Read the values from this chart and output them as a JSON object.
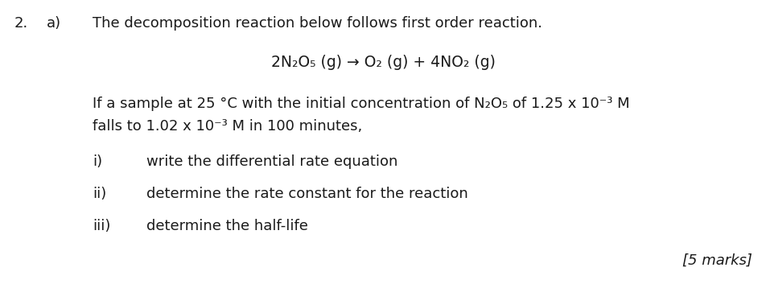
{
  "background_color": "#ffffff",
  "fig_width": 9.52,
  "fig_height": 3.53,
  "dpi": 100,
  "number": "2.",
  "letter": "a)",
  "line1": "The decomposition reaction below follows first order reaction.",
  "equation": "2N₂O₅ (g) → O₂ (g) + 4NO₂ (g)",
  "line2a": "If a sample at 25 °C with the initial concentration of N₂O₅ of 1.25 x 10⁻³ M",
  "line2b": "falls to 1.02 x 10⁻³ M in 100 minutes,",
  "item_i_label": "i)",
  "item_i_text": "write the differential rate equation",
  "item_ii_label": "ii)",
  "item_ii_text": "determine the rate constant for the reaction",
  "item_iii_label": "iii)",
  "item_iii_text": "determine the half-life",
  "marks": "[5 marks]",
  "font_size_main": 13,
  "font_size_eq": 13.5,
  "text_color": "#1a1a1a",
  "font_family": "DejaVu Sans"
}
